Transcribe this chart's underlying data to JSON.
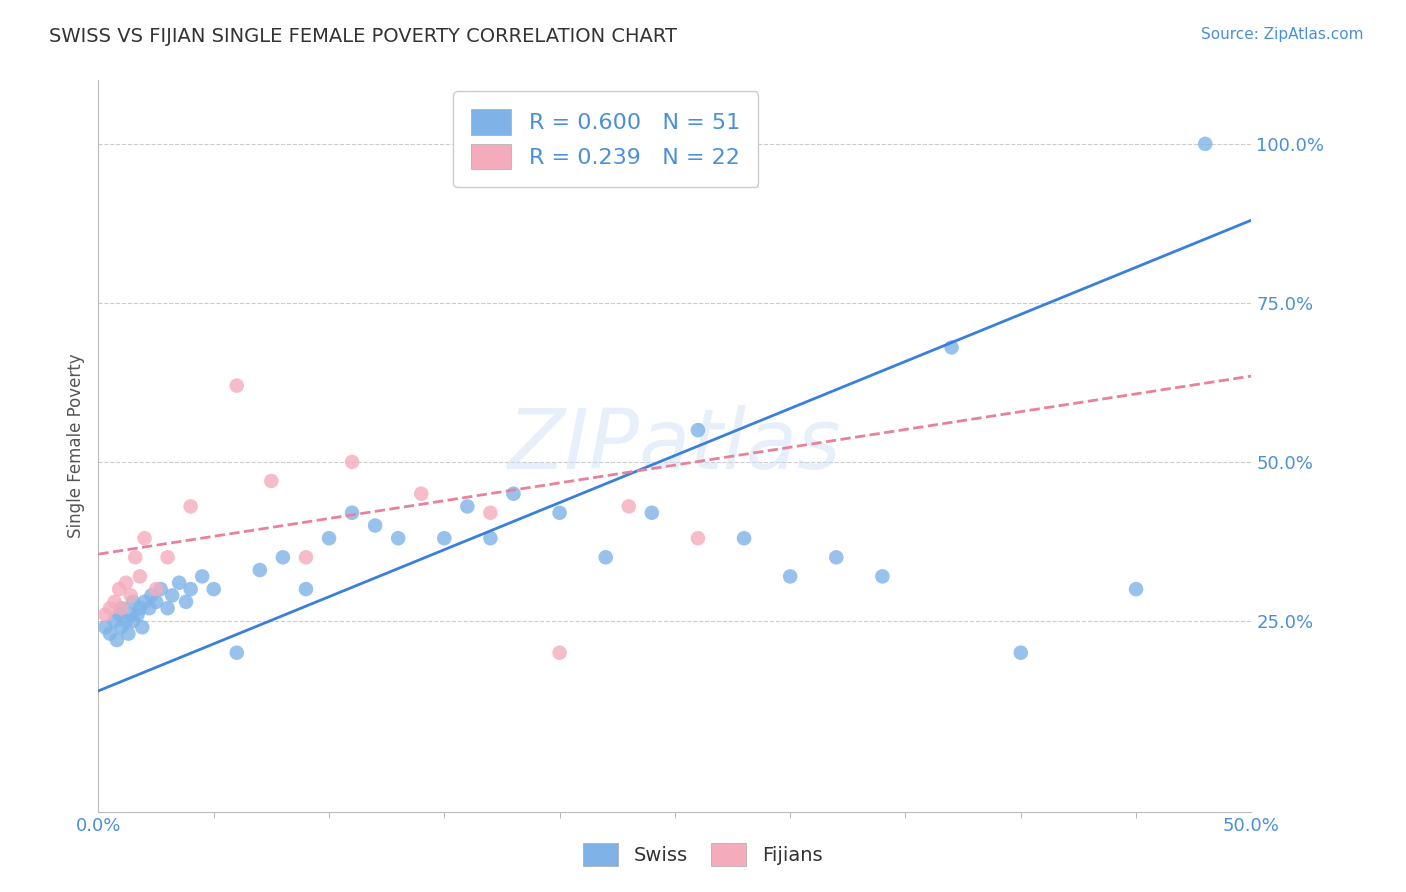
{
  "title": "SWISS VS FIJIAN SINGLE FEMALE POVERTY CORRELATION CHART",
  "source": "Source: ZipAtlas.com",
  "ylabel": "Single Female Poverty",
  "xlim": [
    0.0,
    0.5
  ],
  "ylim": [
    -0.05,
    1.1
  ],
  "ytick_positions": [
    0.0,
    0.25,
    0.5,
    0.75,
    1.0
  ],
  "ytick_labels": [
    "",
    "25.0%",
    "50.0%",
    "75.0%",
    "100.0%"
  ],
  "swiss_R": 0.6,
  "swiss_N": 51,
  "fijian_R": 0.239,
  "fijian_N": 22,
  "swiss_color": "#7FB3E8",
  "fijian_color": "#F4ACBC",
  "swiss_line_color": "#3A7FD9",
  "fijian_line_color": "#E8819A",
  "background_color": "#ffffff",
  "grid_color": "#cccccc",
  "watermark": "ZIPatlas",
  "swiss_x": [
    0.003,
    0.005,
    0.007,
    0.008,
    0.009,
    0.01,
    0.01,
    0.012,
    0.013,
    0.014,
    0.015,
    0.015,
    0.017,
    0.018,
    0.019,
    0.02,
    0.022,
    0.023,
    0.025,
    0.027,
    0.03,
    0.032,
    0.035,
    0.038,
    0.04,
    0.045,
    0.05,
    0.06,
    0.07,
    0.08,
    0.09,
    0.1,
    0.11,
    0.12,
    0.13,
    0.15,
    0.16,
    0.17,
    0.18,
    0.2,
    0.22,
    0.24,
    0.26,
    0.28,
    0.3,
    0.32,
    0.34,
    0.37,
    0.4,
    0.45,
    0.48
  ],
  "swiss_y": [
    0.24,
    0.23,
    0.25,
    0.22,
    0.26,
    0.24,
    0.27,
    0.25,
    0.23,
    0.26,
    0.25,
    0.28,
    0.26,
    0.27,
    0.24,
    0.28,
    0.27,
    0.29,
    0.28,
    0.3,
    0.27,
    0.29,
    0.31,
    0.28,
    0.3,
    0.32,
    0.3,
    0.2,
    0.33,
    0.35,
    0.3,
    0.38,
    0.42,
    0.4,
    0.38,
    0.38,
    0.43,
    0.38,
    0.45,
    0.42,
    0.35,
    0.42,
    0.55,
    0.38,
    0.32,
    0.35,
    0.32,
    0.68,
    0.2,
    0.3,
    1.0
  ],
  "fijian_x": [
    0.003,
    0.005,
    0.007,
    0.009,
    0.01,
    0.012,
    0.014,
    0.016,
    0.018,
    0.02,
    0.025,
    0.03,
    0.04,
    0.06,
    0.075,
    0.09,
    0.11,
    0.14,
    0.17,
    0.2,
    0.23,
    0.26
  ],
  "fijian_y": [
    0.26,
    0.27,
    0.28,
    0.3,
    0.27,
    0.31,
    0.29,
    0.35,
    0.32,
    0.38,
    0.3,
    0.35,
    0.43,
    0.62,
    0.47,
    0.35,
    0.5,
    0.45,
    0.42,
    0.2,
    0.43,
    0.38
  ],
  "swiss_line_x0": 0.0,
  "swiss_line_y0": 0.14,
  "swiss_line_x1": 0.5,
  "swiss_line_y1": 0.88,
  "fijian_line_x0": 0.0,
  "fijian_line_y0": 0.355,
  "fijian_line_x1": 0.5,
  "fijian_line_y1": 0.635
}
